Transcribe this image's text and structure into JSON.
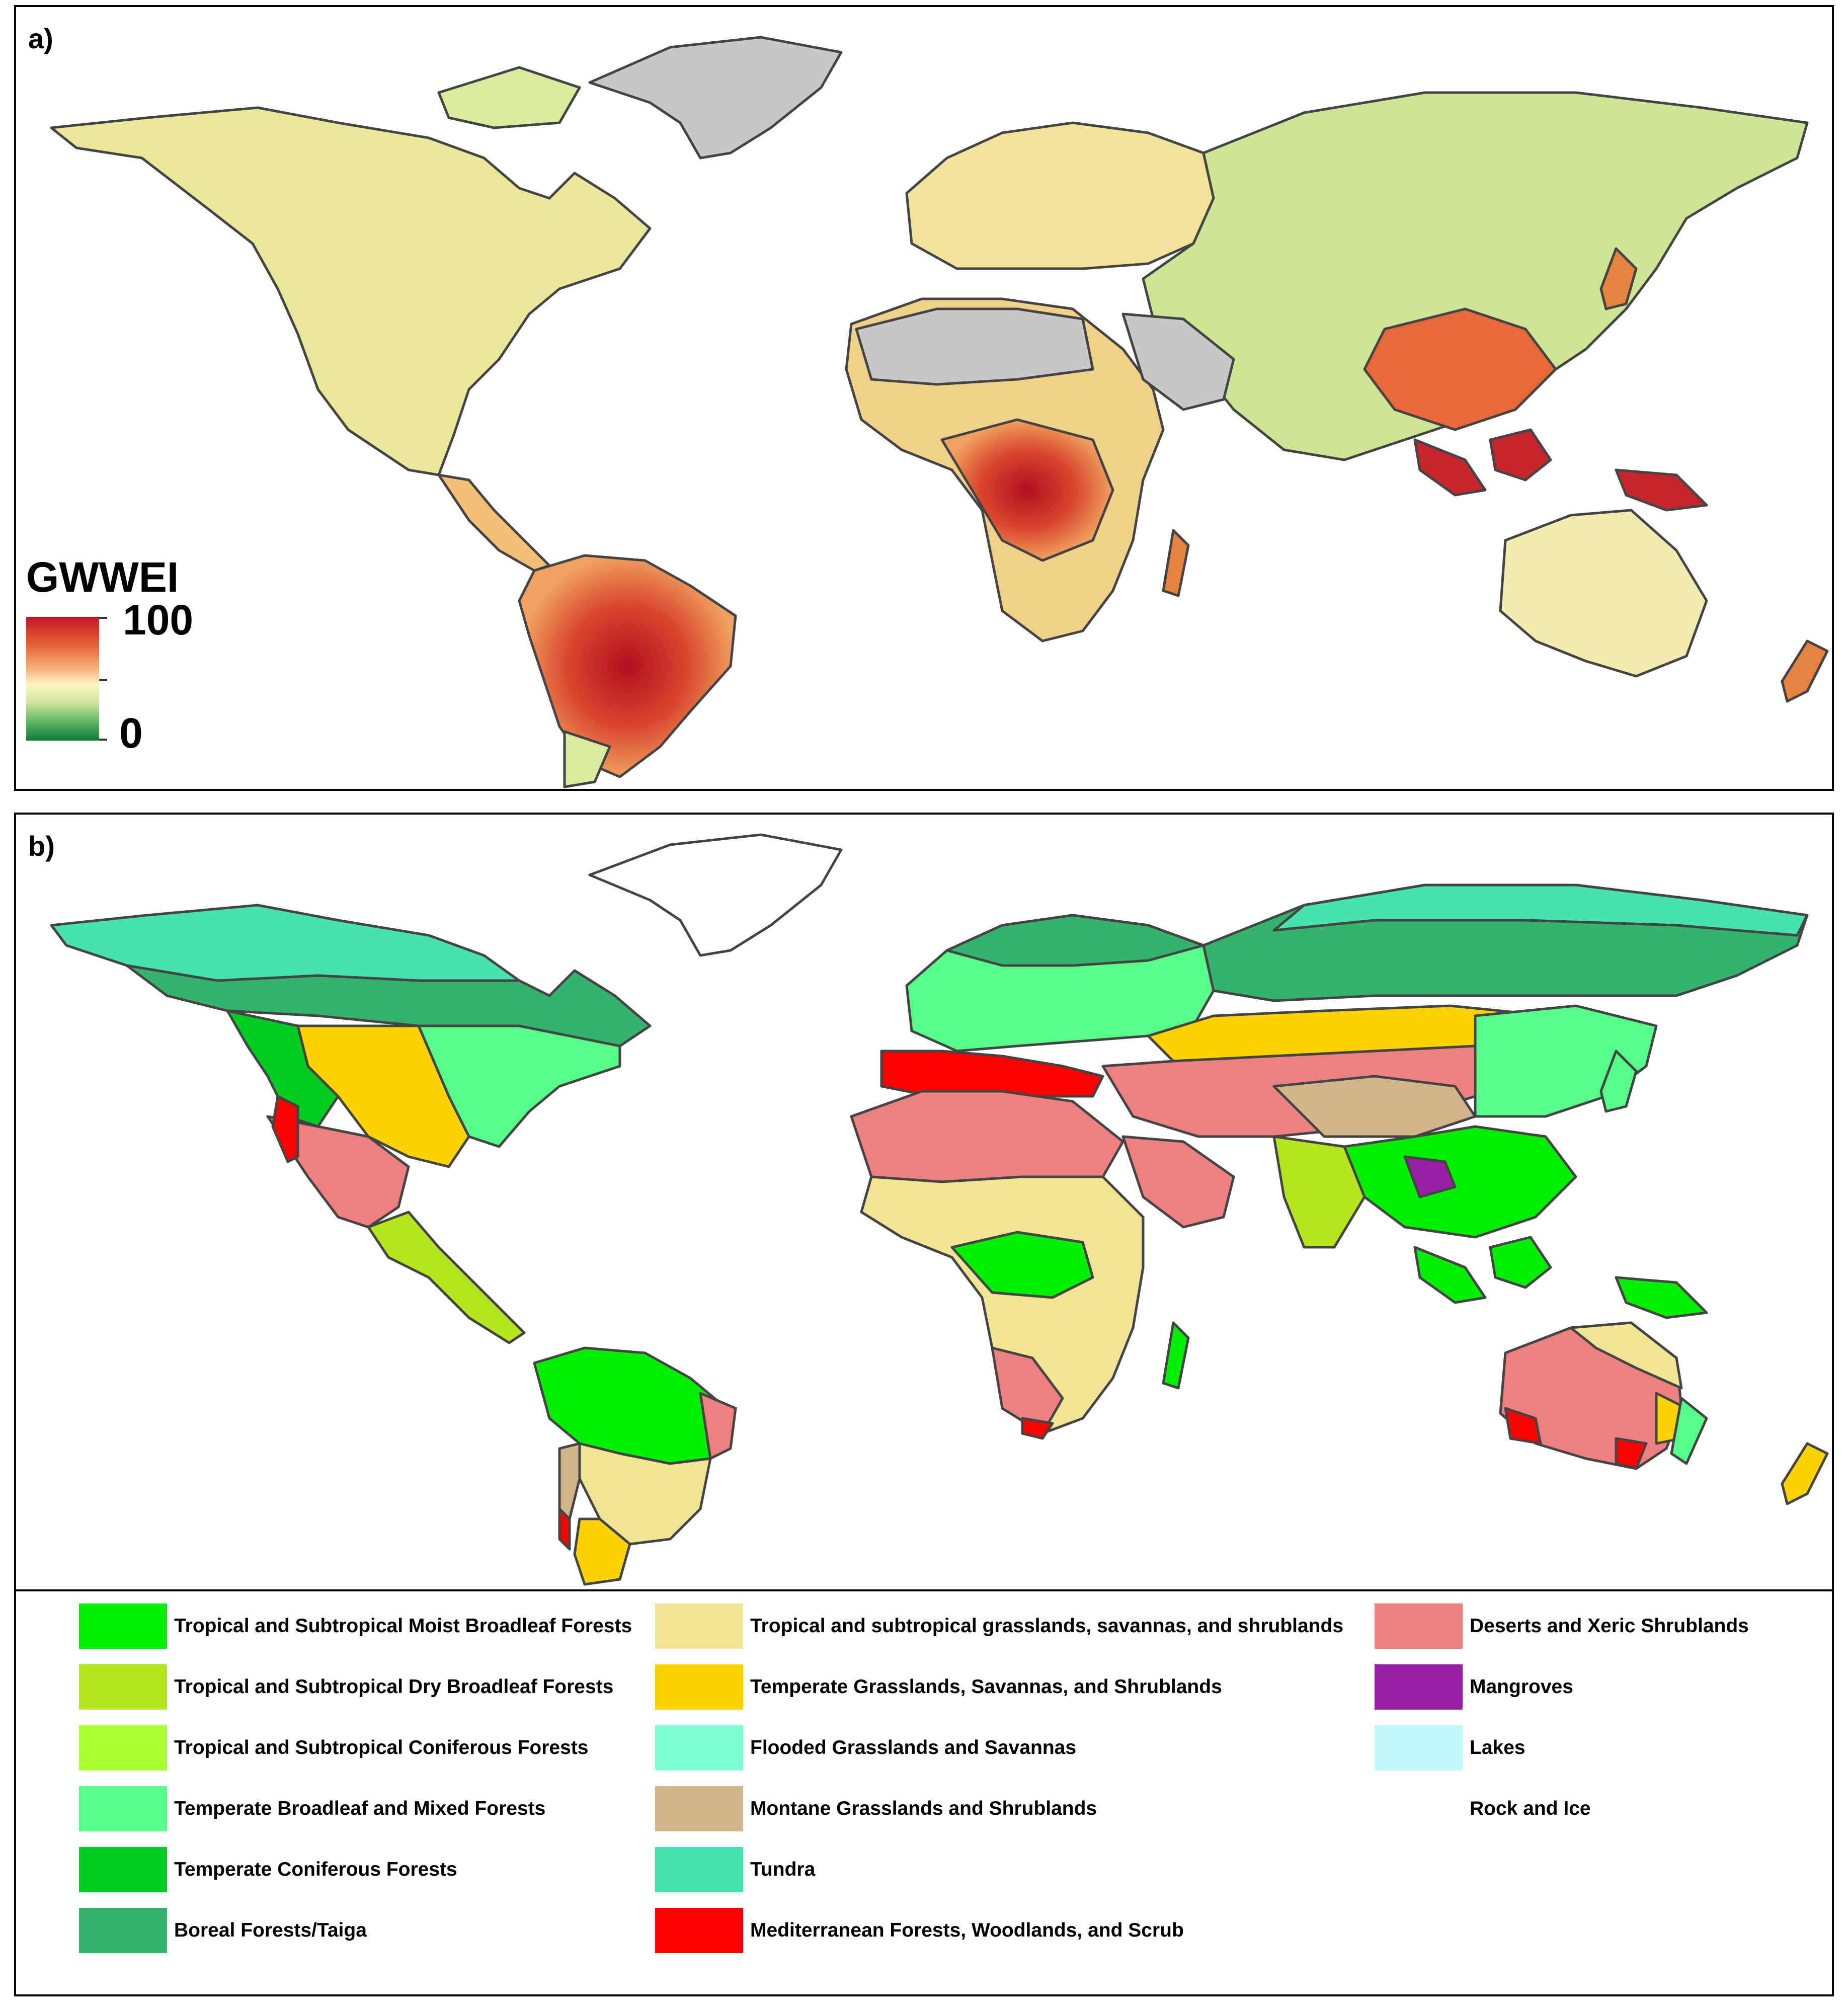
{
  "panel_a": {
    "label": "a)",
    "colorbar": {
      "title": "GWWEI",
      "max_label": "100",
      "min_label": "0",
      "colors": [
        "#c0152a",
        "#e2582f",
        "#f7b27a",
        "#fff6c4",
        "#c9e49a",
        "#5fb665",
        "#0f7a3a"
      ]
    },
    "colors": {
      "no_data": "#c8c8c8",
      "coast": "#444444",
      "high": "#c0152a",
      "mid_high": "#e2582f",
      "mid": "#f7d08a",
      "low": "#d8eba0",
      "very_low": "#8cc97a"
    }
  },
  "panel_b": {
    "label": "b)",
    "legend": [
      {
        "label": "Tropical and Subtropical Moist Broadleaf Forests",
        "color": "#00ee00"
      },
      {
        "label": "Tropical and Subtropical Dry Broadleaf Forests",
        "color": "#b5e61d"
      },
      {
        "label": "Tropical and Subtropical Coniferous Forests",
        "color": "#aaff33"
      },
      {
        "label": "Temperate Broadleaf and Mixed Forests",
        "color": "#55ff88"
      },
      {
        "label": "Temperate Coniferous Forests",
        "color": "#00cc22"
      },
      {
        "label": "Boreal Forests/Taiga",
        "color": "#33b36b"
      },
      {
        "label": "Tropical and subtropical grasslands, savannas, and shrublands",
        "color": "#efe595"
      },
      {
        "label": "Temperate Grasslands, Savannas, and Shrublands",
        "color": "#ffd200"
      },
      {
        "label": "Flooded Grasslands and Savannas",
        "color": "#7fffd4"
      },
      {
        "label": "Montane Grasslands and Shrublands",
        "color": "#d2b48c"
      },
      {
        "label": "Tundra",
        "color": "#46e3ae"
      },
      {
        "label": "Mediterranean Forests, Woodlands, and Scrub",
        "color": "#ff0000"
      },
      {
        "label": "Deserts and Xeric Shrublands",
        "color": "#f08080"
      },
      {
        "label": "Mangroves",
        "color": "#9b1fa5"
      },
      {
        "label": "Lakes",
        "color": "#c4f9fb"
      },
      {
        "label": "Rock and Ice",
        "color": "#ffffff"
      }
    ]
  }
}
